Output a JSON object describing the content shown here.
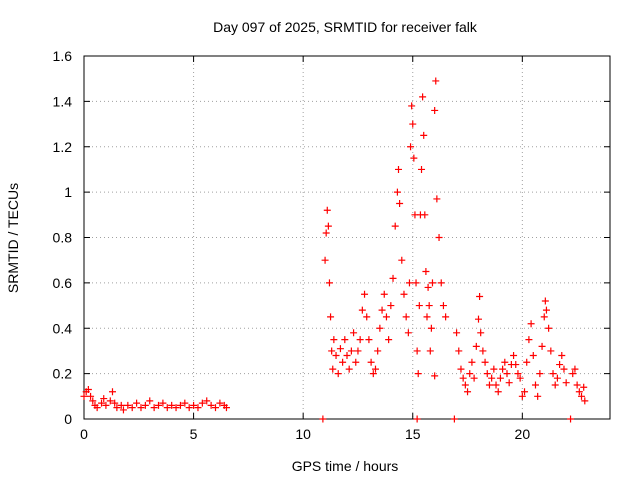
{
  "chart_data": {
    "type": "scatter",
    "title": "Day 097 of 2025, SRMTID for receiver falk",
    "xlabel": "GPS time / hours",
    "ylabel": "SRMTID / TECUs",
    "xlim": [
      0,
      24
    ],
    "ylim": [
      0,
      1.6
    ],
    "x_ticks": [
      0,
      5,
      10,
      15,
      20
    ],
    "x_tick_labels": [
      "0",
      "5",
      "10",
      "15",
      "20"
    ],
    "y_ticks": [
      0,
      0.2,
      0.4,
      0.6,
      0.8,
      1.0,
      1.2,
      1.4,
      1.6
    ],
    "y_tick_labels": [
      "0",
      "0.2",
      "0.4",
      "0.6",
      "0.8",
      "1",
      "1.2",
      "1.4",
      "1.6"
    ],
    "grid": true,
    "marker": "+",
    "color": "#ff0000",
    "series": [
      {
        "name": "SRMTID",
        "points": [
          [
            0.0,
            0.1
          ],
          [
            0.1,
            0.12
          ],
          [
            0.2,
            0.13
          ],
          [
            0.3,
            0.1
          ],
          [
            0.4,
            0.08
          ],
          [
            0.5,
            0.06
          ],
          [
            0.6,
            0.05
          ],
          [
            0.8,
            0.07
          ],
          [
            0.9,
            0.09
          ],
          [
            1.0,
            0.06
          ],
          [
            1.2,
            0.08
          ],
          [
            1.3,
            0.12
          ],
          [
            1.4,
            0.07
          ],
          [
            1.5,
            0.05
          ],
          [
            1.7,
            0.06
          ],
          [
            1.8,
            0.04
          ],
          [
            2.0,
            0.06
          ],
          [
            2.2,
            0.05
          ],
          [
            2.4,
            0.07
          ],
          [
            2.6,
            0.05
          ],
          [
            2.8,
            0.06
          ],
          [
            3.0,
            0.08
          ],
          [
            3.2,
            0.05
          ],
          [
            3.4,
            0.06
          ],
          [
            3.6,
            0.07
          ],
          [
            3.8,
            0.05
          ],
          [
            4.0,
            0.06
          ],
          [
            4.2,
            0.05
          ],
          [
            4.4,
            0.06
          ],
          [
            4.6,
            0.07
          ],
          [
            4.8,
            0.05
          ],
          [
            5.0,
            0.06
          ],
          [
            5.2,
            0.05
          ],
          [
            5.4,
            0.07
          ],
          [
            5.6,
            0.08
          ],
          [
            5.8,
            0.06
          ],
          [
            6.0,
            0.05
          ],
          [
            6.2,
            0.07
          ],
          [
            6.4,
            0.06
          ],
          [
            6.5,
            0.05
          ],
          [
            10.9,
            0.0
          ],
          [
            11.0,
            0.7
          ],
          [
            11.05,
            0.82
          ],
          [
            11.1,
            0.92
          ],
          [
            11.15,
            0.85
          ],
          [
            11.2,
            0.6
          ],
          [
            11.25,
            0.45
          ],
          [
            11.3,
            0.3
          ],
          [
            11.35,
            0.22
          ],
          [
            11.4,
            0.35
          ],
          [
            11.5,
            0.28
          ],
          [
            11.6,
            0.2
          ],
          [
            11.7,
            0.31
          ],
          [
            11.8,
            0.25
          ],
          [
            11.9,
            0.35
          ],
          [
            12.0,
            0.28
          ],
          [
            12.1,
            0.22
          ],
          [
            12.2,
            0.3
          ],
          [
            12.3,
            0.38
          ],
          [
            12.4,
            0.25
          ],
          [
            12.5,
            0.3
          ],
          [
            12.6,
            0.35
          ],
          [
            12.7,
            0.48
          ],
          [
            12.8,
            0.55
          ],
          [
            12.9,
            0.45
          ],
          [
            13.0,
            0.35
          ],
          [
            13.1,
            0.25
          ],
          [
            13.2,
            0.2
          ],
          [
            13.3,
            0.22
          ],
          [
            13.4,
            0.3
          ],
          [
            13.5,
            0.4
          ],
          [
            13.6,
            0.48
          ],
          [
            13.7,
            0.55
          ],
          [
            13.8,
            0.45
          ],
          [
            13.9,
            0.35
          ],
          [
            14.0,
            0.5
          ],
          [
            14.1,
            0.62
          ],
          [
            14.2,
            0.85
          ],
          [
            14.3,
            1.0
          ],
          [
            14.35,
            1.1
          ],
          [
            14.4,
            0.95
          ],
          [
            14.5,
            0.7
          ],
          [
            14.6,
            0.55
          ],
          [
            14.7,
            0.45
          ],
          [
            14.8,
            0.38
          ],
          [
            14.85,
            0.6
          ],
          [
            14.9,
            1.2
          ],
          [
            14.95,
            1.38
          ],
          [
            15.0,
            1.3
          ],
          [
            15.05,
            1.15
          ],
          [
            15.1,
            0.9
          ],
          [
            15.15,
            0.6
          ],
          [
            15.2,
            0.3
          ],
          [
            15.25,
            0.2
          ],
          [
            15.3,
            0.5
          ],
          [
            15.35,
            0.9
          ],
          [
            15.4,
            1.1
          ],
          [
            15.45,
            1.42
          ],
          [
            15.5,
            1.25
          ],
          [
            15.55,
            0.9
          ],
          [
            15.6,
            0.65
          ],
          [
            15.65,
            0.45
          ],
          [
            15.7,
            0.58
          ],
          [
            15.75,
            0.5
          ],
          [
            15.8,
            0.3
          ],
          [
            15.85,
            0.4
          ],
          [
            15.9,
            0.6
          ],
          [
            16.0,
            1.36
          ],
          [
            16.05,
            1.49
          ],
          [
            16.1,
            0.97
          ],
          [
            16.2,
            0.8
          ],
          [
            16.3,
            0.6
          ],
          [
            16.4,
            0.5
          ],
          [
            16.5,
            0.45
          ],
          [
            16.0,
            0.19
          ],
          [
            15.2,
            0.0
          ],
          [
            16.9,
            0.0
          ],
          [
            17.0,
            0.38
          ],
          [
            17.1,
            0.3
          ],
          [
            17.2,
            0.22
          ],
          [
            17.3,
            0.18
          ],
          [
            17.4,
            0.15
          ],
          [
            17.5,
            0.12
          ],
          [
            17.6,
            0.2
          ],
          [
            17.7,
            0.25
          ],
          [
            17.8,
            0.18
          ],
          [
            17.9,
            0.32
          ],
          [
            18.0,
            0.44
          ],
          [
            18.05,
            0.54
          ],
          [
            18.1,
            0.38
          ],
          [
            18.2,
            0.3
          ],
          [
            18.3,
            0.25
          ],
          [
            18.4,
            0.2
          ],
          [
            18.5,
            0.15
          ],
          [
            18.6,
            0.18
          ],
          [
            18.7,
            0.22
          ],
          [
            18.8,
            0.15
          ],
          [
            18.9,
            0.12
          ],
          [
            19.0,
            0.18
          ],
          [
            19.1,
            0.22
          ],
          [
            19.2,
            0.25
          ],
          [
            19.3,
            0.2
          ],
          [
            19.4,
            0.16
          ],
          [
            19.5,
            0.24
          ],
          [
            19.6,
            0.28
          ],
          [
            19.7,
            0.24
          ],
          [
            19.8,
            0.2
          ],
          [
            19.9,
            0.18
          ],
          [
            20.0,
            0.1
          ],
          [
            20.1,
            0.12
          ],
          [
            20.2,
            0.25
          ],
          [
            20.3,
            0.35
          ],
          [
            20.4,
            0.42
          ],
          [
            20.5,
            0.28
          ],
          [
            20.6,
            0.15
          ],
          [
            20.7,
            0.1
          ],
          [
            20.8,
            0.2
          ],
          [
            20.9,
            0.32
          ],
          [
            21.0,
            0.45
          ],
          [
            21.05,
            0.52
          ],
          [
            21.1,
            0.48
          ],
          [
            21.2,
            0.4
          ],
          [
            21.3,
            0.3
          ],
          [
            21.4,
            0.2
          ],
          [
            21.5,
            0.15
          ],
          [
            21.6,
            0.18
          ],
          [
            21.7,
            0.24
          ],
          [
            21.8,
            0.28
          ],
          [
            21.9,
            0.22
          ],
          [
            22.0,
            0.16
          ],
          [
            22.2,
            0.0
          ],
          [
            22.3,
            0.2
          ],
          [
            22.4,
            0.22
          ],
          [
            22.5,
            0.15
          ],
          [
            22.6,
            0.12
          ],
          [
            22.7,
            0.1
          ],
          [
            22.8,
            0.14
          ],
          [
            22.85,
            0.08
          ]
        ]
      }
    ]
  }
}
